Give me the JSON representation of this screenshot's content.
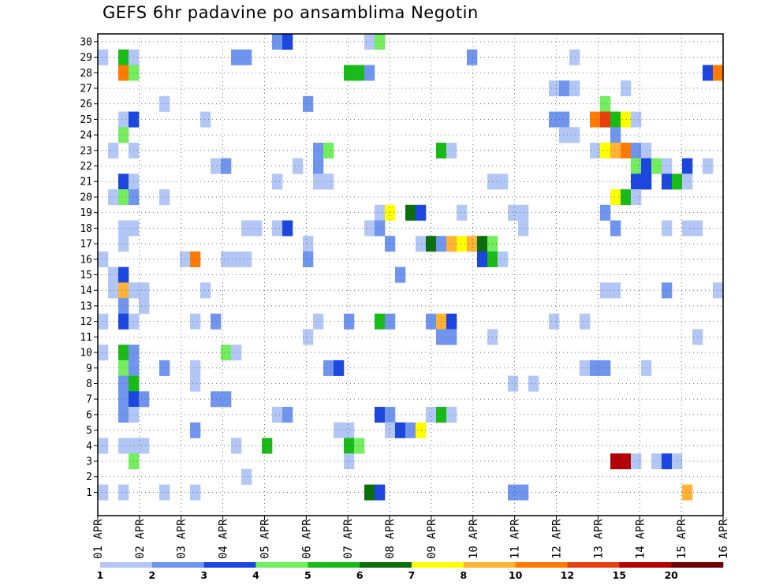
{
  "chart_data": {
    "type": "heatmap",
    "title": "GEFS 6hr padavine po ansamblima Negotin",
    "xlabel": "",
    "ylabel": "",
    "x_tick_labels": [
      "01 APR",
      "02 APR",
      "03 APR",
      "04 APR",
      "05 APR",
      "06 APR",
      "07 APR",
      "08 APR",
      "09 APR",
      "10 APR",
      "11 APR",
      "12 APR",
      "13 APR",
      "14 APR",
      "15 APR",
      "16 APR"
    ],
    "x_range_days": [
      1,
      16
    ],
    "ensemble_members": [
      1,
      2,
      3,
      4,
      5,
      6,
      7,
      8,
      9,
      10,
      11,
      12,
      13,
      14,
      15,
      16,
      17,
      18,
      19,
      20,
      21,
      22,
      23,
      24,
      25,
      26,
      27,
      28,
      29,
      30
    ],
    "grid": "dotted",
    "legend_placement": "bottom",
    "color_scale": {
      "bounds": [
        "1",
        "2",
        "3",
        "4",
        "5",
        "6",
        "7",
        "8",
        "10",
        "12",
        "15",
        "20"
      ],
      "colors": [
        "#b3c7f7",
        "#6f95ef",
        "#1b47e0",
        "#72ee5f",
        "#19bb19",
        "#0a6f0a",
        "#ffff00",
        "#ffb233",
        "#ff7a00",
        "#e64010",
        "#b40000",
        "#6e0000"
      ]
    },
    "cells": [
      {
        "m": 30,
        "t": 17,
        "c": 1
      },
      {
        "m": 30,
        "t": 18,
        "c": 2
      },
      {
        "m": 30,
        "t": 26,
        "c": 0
      },
      {
        "m": 30,
        "t": 27,
        "c": 3
      },
      {
        "m": 29,
        "t": 0,
        "c": 0
      },
      {
        "m": 29,
        "t": 2,
        "c": 4
      },
      {
        "m": 29,
        "t": 3,
        "c": 0
      },
      {
        "m": 29,
        "t": 13,
        "c": 1
      },
      {
        "m": 29,
        "t": 14,
        "c": 1
      },
      {
        "m": 29,
        "t": 36,
        "c": 1
      },
      {
        "m": 29,
        "t": 46,
        "c": 0
      },
      {
        "m": 28,
        "t": 2,
        "c": 8
      },
      {
        "m": 28,
        "t": 3,
        "c": 3
      },
      {
        "m": 28,
        "t": 24,
        "c": 4
      },
      {
        "m": 28,
        "t": 25,
        "c": 4
      },
      {
        "m": 28,
        "t": 26,
        "c": 1
      },
      {
        "m": 28,
        "t": 59,
        "c": 2
      },
      {
        "m": 28,
        "t": 60,
        "c": 8
      },
      {
        "m": 27,
        "t": 44,
        "c": 0
      },
      {
        "m": 27,
        "t": 45,
        "c": 1
      },
      {
        "m": 27,
        "t": 46,
        "c": 0
      },
      {
        "m": 27,
        "t": 51,
        "c": 0
      },
      {
        "m": 26,
        "t": 6,
        "c": 0
      },
      {
        "m": 26,
        "t": 20,
        "c": 1
      },
      {
        "m": 26,
        "t": 49,
        "c": 3
      },
      {
        "m": 25,
        "t": 2,
        "c": 0
      },
      {
        "m": 25,
        "t": 3,
        "c": 2
      },
      {
        "m": 25,
        "t": 10,
        "c": 0
      },
      {
        "m": 25,
        "t": 44,
        "c": 1
      },
      {
        "m": 25,
        "t": 45,
        "c": 1
      },
      {
        "m": 25,
        "t": 48,
        "c": 8
      },
      {
        "m": 25,
        "t": 49,
        "c": 9
      },
      {
        "m": 25,
        "t": 50,
        "c": 4
      },
      {
        "m": 25,
        "t": 51,
        "c": 6
      },
      {
        "m": 25,
        "t": 52,
        "c": 0
      },
      {
        "m": 24,
        "t": 2,
        "c": 3
      },
      {
        "m": 24,
        "t": 45,
        "c": 0
      },
      {
        "m": 24,
        "t": 46,
        "c": 0
      },
      {
        "m": 24,
        "t": 50,
        "c": 1
      },
      {
        "m": 23,
        "t": 1,
        "c": 0
      },
      {
        "m": 23,
        "t": 3,
        "c": 0
      },
      {
        "m": 23,
        "t": 21,
        "c": 1
      },
      {
        "m": 23,
        "t": 22,
        "c": 3
      },
      {
        "m": 23,
        "t": 33,
        "c": 4
      },
      {
        "m": 23,
        "t": 34,
        "c": 0
      },
      {
        "m": 23,
        "t": 48,
        "c": 0
      },
      {
        "m": 23,
        "t": 49,
        "c": 6
      },
      {
        "m": 23,
        "t": 50,
        "c": 7
      },
      {
        "m": 23,
        "t": 51,
        "c": 8
      },
      {
        "m": 23,
        "t": 52,
        "c": 1
      },
      {
        "m": 23,
        "t": 53,
        "c": 0
      },
      {
        "m": 22,
        "t": 11,
        "c": 0
      },
      {
        "m": 22,
        "t": 12,
        "c": 1
      },
      {
        "m": 22,
        "t": 19,
        "c": 0
      },
      {
        "m": 22,
        "t": 21,
        "c": 1
      },
      {
        "m": 22,
        "t": 52,
        "c": 3
      },
      {
        "m": 22,
        "t": 53,
        "c": 2
      },
      {
        "m": 22,
        "t": 54,
        "c": 3
      },
      {
        "m": 22,
        "t": 55,
        "c": 0
      },
      {
        "m": 22,
        "t": 57,
        "c": 2
      },
      {
        "m": 22,
        "t": 59,
        "c": 0
      },
      {
        "m": 21,
        "t": 2,
        "c": 2
      },
      {
        "m": 21,
        "t": 3,
        "c": 0
      },
      {
        "m": 21,
        "t": 17,
        "c": 0
      },
      {
        "m": 21,
        "t": 21,
        "c": 0
      },
      {
        "m": 21,
        "t": 22,
        "c": 0
      },
      {
        "m": 21,
        "t": 38,
        "c": 0
      },
      {
        "m": 21,
        "t": 39,
        "c": 0
      },
      {
        "m": 21,
        "t": 52,
        "c": 2
      },
      {
        "m": 21,
        "t": 53,
        "c": 2
      },
      {
        "m": 21,
        "t": 55,
        "c": 2
      },
      {
        "m": 21,
        "t": 56,
        "c": 4
      },
      {
        "m": 21,
        "t": 57,
        "c": 0
      },
      {
        "m": 20,
        "t": 1,
        "c": 0
      },
      {
        "m": 20,
        "t": 2,
        "c": 3
      },
      {
        "m": 20,
        "t": 3,
        "c": 1
      },
      {
        "m": 20,
        "t": 6,
        "c": 0
      },
      {
        "m": 20,
        "t": 50,
        "c": 6
      },
      {
        "m": 20,
        "t": 51,
        "c": 4
      },
      {
        "m": 20,
        "t": 52,
        "c": 0
      },
      {
        "m": 19,
        "t": 27,
        "c": 0
      },
      {
        "m": 19,
        "t": 28,
        "c": 6
      },
      {
        "m": 19,
        "t": 30,
        "c": 5
      },
      {
        "m": 19,
        "t": 31,
        "c": 2
      },
      {
        "m": 19,
        "t": 35,
        "c": 0
      },
      {
        "m": 19,
        "t": 40,
        "c": 0
      },
      {
        "m": 19,
        "t": 41,
        "c": 0
      },
      {
        "m": 19,
        "t": 49,
        "c": 1
      },
      {
        "m": 18,
        "t": 2,
        "c": 0
      },
      {
        "m": 18,
        "t": 3,
        "c": 0
      },
      {
        "m": 18,
        "t": 14,
        "c": 0
      },
      {
        "m": 18,
        "t": 15,
        "c": 0
      },
      {
        "m": 18,
        "t": 17,
        "c": 0
      },
      {
        "m": 18,
        "t": 18,
        "c": 2
      },
      {
        "m": 18,
        "t": 26,
        "c": 0
      },
      {
        "m": 18,
        "t": 27,
        "c": 1
      },
      {
        "m": 18,
        "t": 41,
        "c": 0
      },
      {
        "m": 18,
        "t": 50,
        "c": 1
      },
      {
        "m": 18,
        "t": 55,
        "c": 0
      },
      {
        "m": 18,
        "t": 57,
        "c": 0
      },
      {
        "m": 18,
        "t": 58,
        "c": 0
      },
      {
        "m": 17,
        "t": 2,
        "c": 0
      },
      {
        "m": 17,
        "t": 20,
        "c": 0
      },
      {
        "m": 17,
        "t": 28,
        "c": 1
      },
      {
        "m": 17,
        "t": 31,
        "c": 0
      },
      {
        "m": 17,
        "t": 32,
        "c": 5
      },
      {
        "m": 17,
        "t": 33,
        "c": 1
      },
      {
        "m": 17,
        "t": 34,
        "c": 7
      },
      {
        "m": 17,
        "t": 35,
        "c": 6
      },
      {
        "m": 17,
        "t": 36,
        "c": 7
      },
      {
        "m": 17,
        "t": 37,
        "c": 5
      },
      {
        "m": 17,
        "t": 38,
        "c": 3
      },
      {
        "m": 16,
        "t": 0,
        "c": 0
      },
      {
        "m": 16,
        "t": 8,
        "c": 0
      },
      {
        "m": 16,
        "t": 9,
        "c": 8
      },
      {
        "m": 16,
        "t": 12,
        "c": 0
      },
      {
        "m": 16,
        "t": 13,
        "c": 0
      },
      {
        "m": 16,
        "t": 14,
        "c": 0
      },
      {
        "m": 16,
        "t": 20,
        "c": 1
      },
      {
        "m": 16,
        "t": 37,
        "c": 2
      },
      {
        "m": 16,
        "t": 38,
        "c": 4
      },
      {
        "m": 16,
        "t": 39,
        "c": 0
      },
      {
        "m": 15,
        "t": 1,
        "c": 0
      },
      {
        "m": 15,
        "t": 2,
        "c": 2
      },
      {
        "m": 15,
        "t": 29,
        "c": 1
      },
      {
        "m": 14,
        "t": 1,
        "c": 0
      },
      {
        "m": 14,
        "t": 2,
        "c": 7
      },
      {
        "m": 14,
        "t": 3,
        "c": 0
      },
      {
        "m": 14,
        "t": 4,
        "c": 0
      },
      {
        "m": 14,
        "t": 10,
        "c": 0
      },
      {
        "m": 14,
        "t": 49,
        "c": 0
      },
      {
        "m": 14,
        "t": 50,
        "c": 0
      },
      {
        "m": 14,
        "t": 55,
        "c": 1
      },
      {
        "m": 14,
        "t": 60,
        "c": 0
      },
      {
        "m": 13,
        "t": 2,
        "c": 1
      },
      {
        "m": 13,
        "t": 4,
        "c": 0
      },
      {
        "m": 12,
        "t": 0,
        "c": 0
      },
      {
        "m": 12,
        "t": 2,
        "c": 2
      },
      {
        "m": 12,
        "t": 3,
        "c": 0
      },
      {
        "m": 12,
        "t": 9,
        "c": 0
      },
      {
        "m": 12,
        "t": 11,
        "c": 1
      },
      {
        "m": 12,
        "t": 21,
        "c": 0
      },
      {
        "m": 12,
        "t": 24,
        "c": 1
      },
      {
        "m": 12,
        "t": 27,
        "c": 4
      },
      {
        "m": 12,
        "t": 28,
        "c": 1
      },
      {
        "m": 12,
        "t": 32,
        "c": 1
      },
      {
        "m": 12,
        "t": 33,
        "c": 7
      },
      {
        "m": 12,
        "t": 34,
        "c": 2
      },
      {
        "m": 12,
        "t": 44,
        "c": 0
      },
      {
        "m": 12,
        "t": 47,
        "c": 0
      },
      {
        "m": 11,
        "t": 20,
        "c": 0
      },
      {
        "m": 11,
        "t": 33,
        "c": 1
      },
      {
        "m": 11,
        "t": 34,
        "c": 1
      },
      {
        "m": 11,
        "t": 38,
        "c": 0
      },
      {
        "m": 11,
        "t": 58,
        "c": 0
      },
      {
        "m": 10,
        "t": 0,
        "c": 0
      },
      {
        "m": 10,
        "t": 2,
        "c": 4
      },
      {
        "m": 10,
        "t": 3,
        "c": 1
      },
      {
        "m": 10,
        "t": 12,
        "c": 3
      },
      {
        "m": 10,
        "t": 13,
        "c": 0
      },
      {
        "m": 9,
        "t": 2,
        "c": 3
      },
      {
        "m": 9,
        "t": 3,
        "c": 1
      },
      {
        "m": 9,
        "t": 6,
        "c": 1
      },
      {
        "m": 9,
        "t": 9,
        "c": 0
      },
      {
        "m": 9,
        "t": 22,
        "c": 1
      },
      {
        "m": 9,
        "t": 23,
        "c": 2
      },
      {
        "m": 9,
        "t": 47,
        "c": 0
      },
      {
        "m": 9,
        "t": 48,
        "c": 1
      },
      {
        "m": 9,
        "t": 49,
        "c": 1
      },
      {
        "m": 9,
        "t": 53,
        "c": 0
      },
      {
        "m": 8,
        "t": 2,
        "c": 1
      },
      {
        "m": 8,
        "t": 3,
        "c": 4
      },
      {
        "m": 8,
        "t": 9,
        "c": 0
      },
      {
        "m": 8,
        "t": 40,
        "c": 0
      },
      {
        "m": 8,
        "t": 42,
        "c": 0
      },
      {
        "m": 7,
        "t": 2,
        "c": 1
      },
      {
        "m": 7,
        "t": 3,
        "c": 2
      },
      {
        "m": 7,
        "t": 4,
        "c": 1
      },
      {
        "m": 7,
        "t": 11,
        "c": 1
      },
      {
        "m": 7,
        "t": 12,
        "c": 1
      },
      {
        "m": 6,
        "t": 2,
        "c": 1
      },
      {
        "m": 6,
        "t": 3,
        "c": 0
      },
      {
        "m": 6,
        "t": 17,
        "c": 0
      },
      {
        "m": 6,
        "t": 18,
        "c": 1
      },
      {
        "m": 6,
        "t": 27,
        "c": 2
      },
      {
        "m": 6,
        "t": 28,
        "c": 1
      },
      {
        "m": 6,
        "t": 32,
        "c": 0
      },
      {
        "m": 6,
        "t": 33,
        "c": 4
      },
      {
        "m": 6,
        "t": 34,
        "c": 0
      },
      {
        "m": 5,
        "t": 9,
        "c": 1
      },
      {
        "m": 5,
        "t": 23,
        "c": 0
      },
      {
        "m": 5,
        "t": 24,
        "c": 0
      },
      {
        "m": 5,
        "t": 28,
        "c": 0
      },
      {
        "m": 5,
        "t": 29,
        "c": 2
      },
      {
        "m": 5,
        "t": 30,
        "c": 1
      },
      {
        "m": 5,
        "t": 31,
        "c": 6
      },
      {
        "m": 4,
        "t": 0,
        "c": 0
      },
      {
        "m": 4,
        "t": 2,
        "c": 0
      },
      {
        "m": 4,
        "t": 3,
        "c": 0
      },
      {
        "m": 4,
        "t": 4,
        "c": 0
      },
      {
        "m": 4,
        "t": 13,
        "c": 0
      },
      {
        "m": 4,
        "t": 16,
        "c": 4
      },
      {
        "m": 4,
        "t": 24,
        "c": 4
      },
      {
        "m": 4,
        "t": 25,
        "c": 3
      },
      {
        "m": 3,
        "t": 3,
        "c": 3
      },
      {
        "m": 3,
        "t": 24,
        "c": 0
      },
      {
        "m": 3,
        "t": 50,
        "c": 10
      },
      {
        "m": 3,
        "t": 51,
        "c": 10
      },
      {
        "m": 3,
        "t": 52,
        "c": 0
      },
      {
        "m": 3,
        "t": 54,
        "c": 0
      },
      {
        "m": 3,
        "t": 55,
        "c": 2
      },
      {
        "m": 3,
        "t": 56,
        "c": 0
      },
      {
        "m": 2,
        "t": 14,
        "c": 0
      },
      {
        "m": 1,
        "t": 0,
        "c": 0
      },
      {
        "m": 1,
        "t": 2,
        "c": 0
      },
      {
        "m": 1,
        "t": 6,
        "c": 0
      },
      {
        "m": 1,
        "t": 9,
        "c": 0
      },
      {
        "m": 1,
        "t": 26,
        "c": 5
      },
      {
        "m": 1,
        "t": 27,
        "c": 2
      },
      {
        "m": 1,
        "t": 40,
        "c": 1
      },
      {
        "m": 1,
        "t": 41,
        "c": 1
      },
      {
        "m": 1,
        "t": 57,
        "c": 7
      }
    ]
  }
}
